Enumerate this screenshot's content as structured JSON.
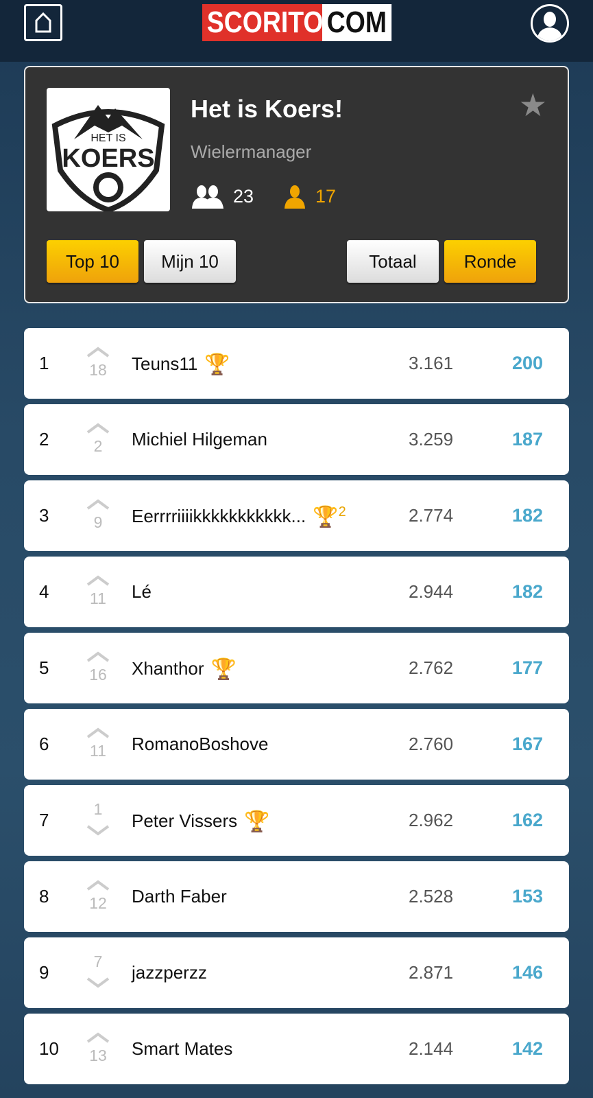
{
  "header": {
    "logo_left": "SCORITO",
    "logo_right": "COM"
  },
  "league": {
    "title": "Het is Koers!",
    "game": "Wielermanager",
    "logo_text": "HET IS KOERS",
    "members": "23",
    "my_count": "17",
    "buttons": {
      "top10": "Top 10",
      "mijn10": "Mijn 10",
      "totaal": "Totaal",
      "ronde": "Ronde"
    },
    "accent": "#f5b800"
  },
  "rows": [
    {
      "rank": "1",
      "dir": "up",
      "change": "18",
      "name": "Teuns11",
      "trophy": true,
      "trophy_count": "",
      "value": "3.161",
      "points": "200"
    },
    {
      "rank": "2",
      "dir": "up",
      "change": "2",
      "name": "Michiel Hilgeman",
      "trophy": false,
      "trophy_count": "",
      "value": "3.259",
      "points": "187"
    },
    {
      "rank": "3",
      "dir": "up",
      "change": "9",
      "name": "Eerrrriiiikkkkkkkkkkk...",
      "trophy": true,
      "trophy_count": "2",
      "value": "2.774",
      "points": "182"
    },
    {
      "rank": "4",
      "dir": "up",
      "change": "11",
      "name": "Lé",
      "trophy": false,
      "trophy_count": "",
      "value": "2.944",
      "points": "182"
    },
    {
      "rank": "5",
      "dir": "up",
      "change": "16",
      "name": "Xhanthor",
      "trophy": true,
      "trophy_count": "",
      "value": "2.762",
      "points": "177"
    },
    {
      "rank": "6",
      "dir": "up",
      "change": "11",
      "name": "RomanoBoshove",
      "trophy": false,
      "trophy_count": "",
      "value": "2.760",
      "points": "167"
    },
    {
      "rank": "7",
      "dir": "down",
      "change": "1",
      "name": "Peter Vissers",
      "trophy": true,
      "trophy_count": "",
      "value": "2.962",
      "points": "162"
    },
    {
      "rank": "8",
      "dir": "up",
      "change": "12",
      "name": "Darth Faber",
      "trophy": false,
      "trophy_count": "",
      "value": "2.528",
      "points": "153"
    },
    {
      "rank": "9",
      "dir": "down",
      "change": "7",
      "name": "jazzperzz",
      "trophy": false,
      "trophy_count": "",
      "value": "2.871",
      "points": "146"
    },
    {
      "rank": "10",
      "dir": "up",
      "change": "13",
      "name": "Smart Mates",
      "trophy": false,
      "trophy_count": "",
      "value": "2.144",
      "points": "142"
    }
  ]
}
